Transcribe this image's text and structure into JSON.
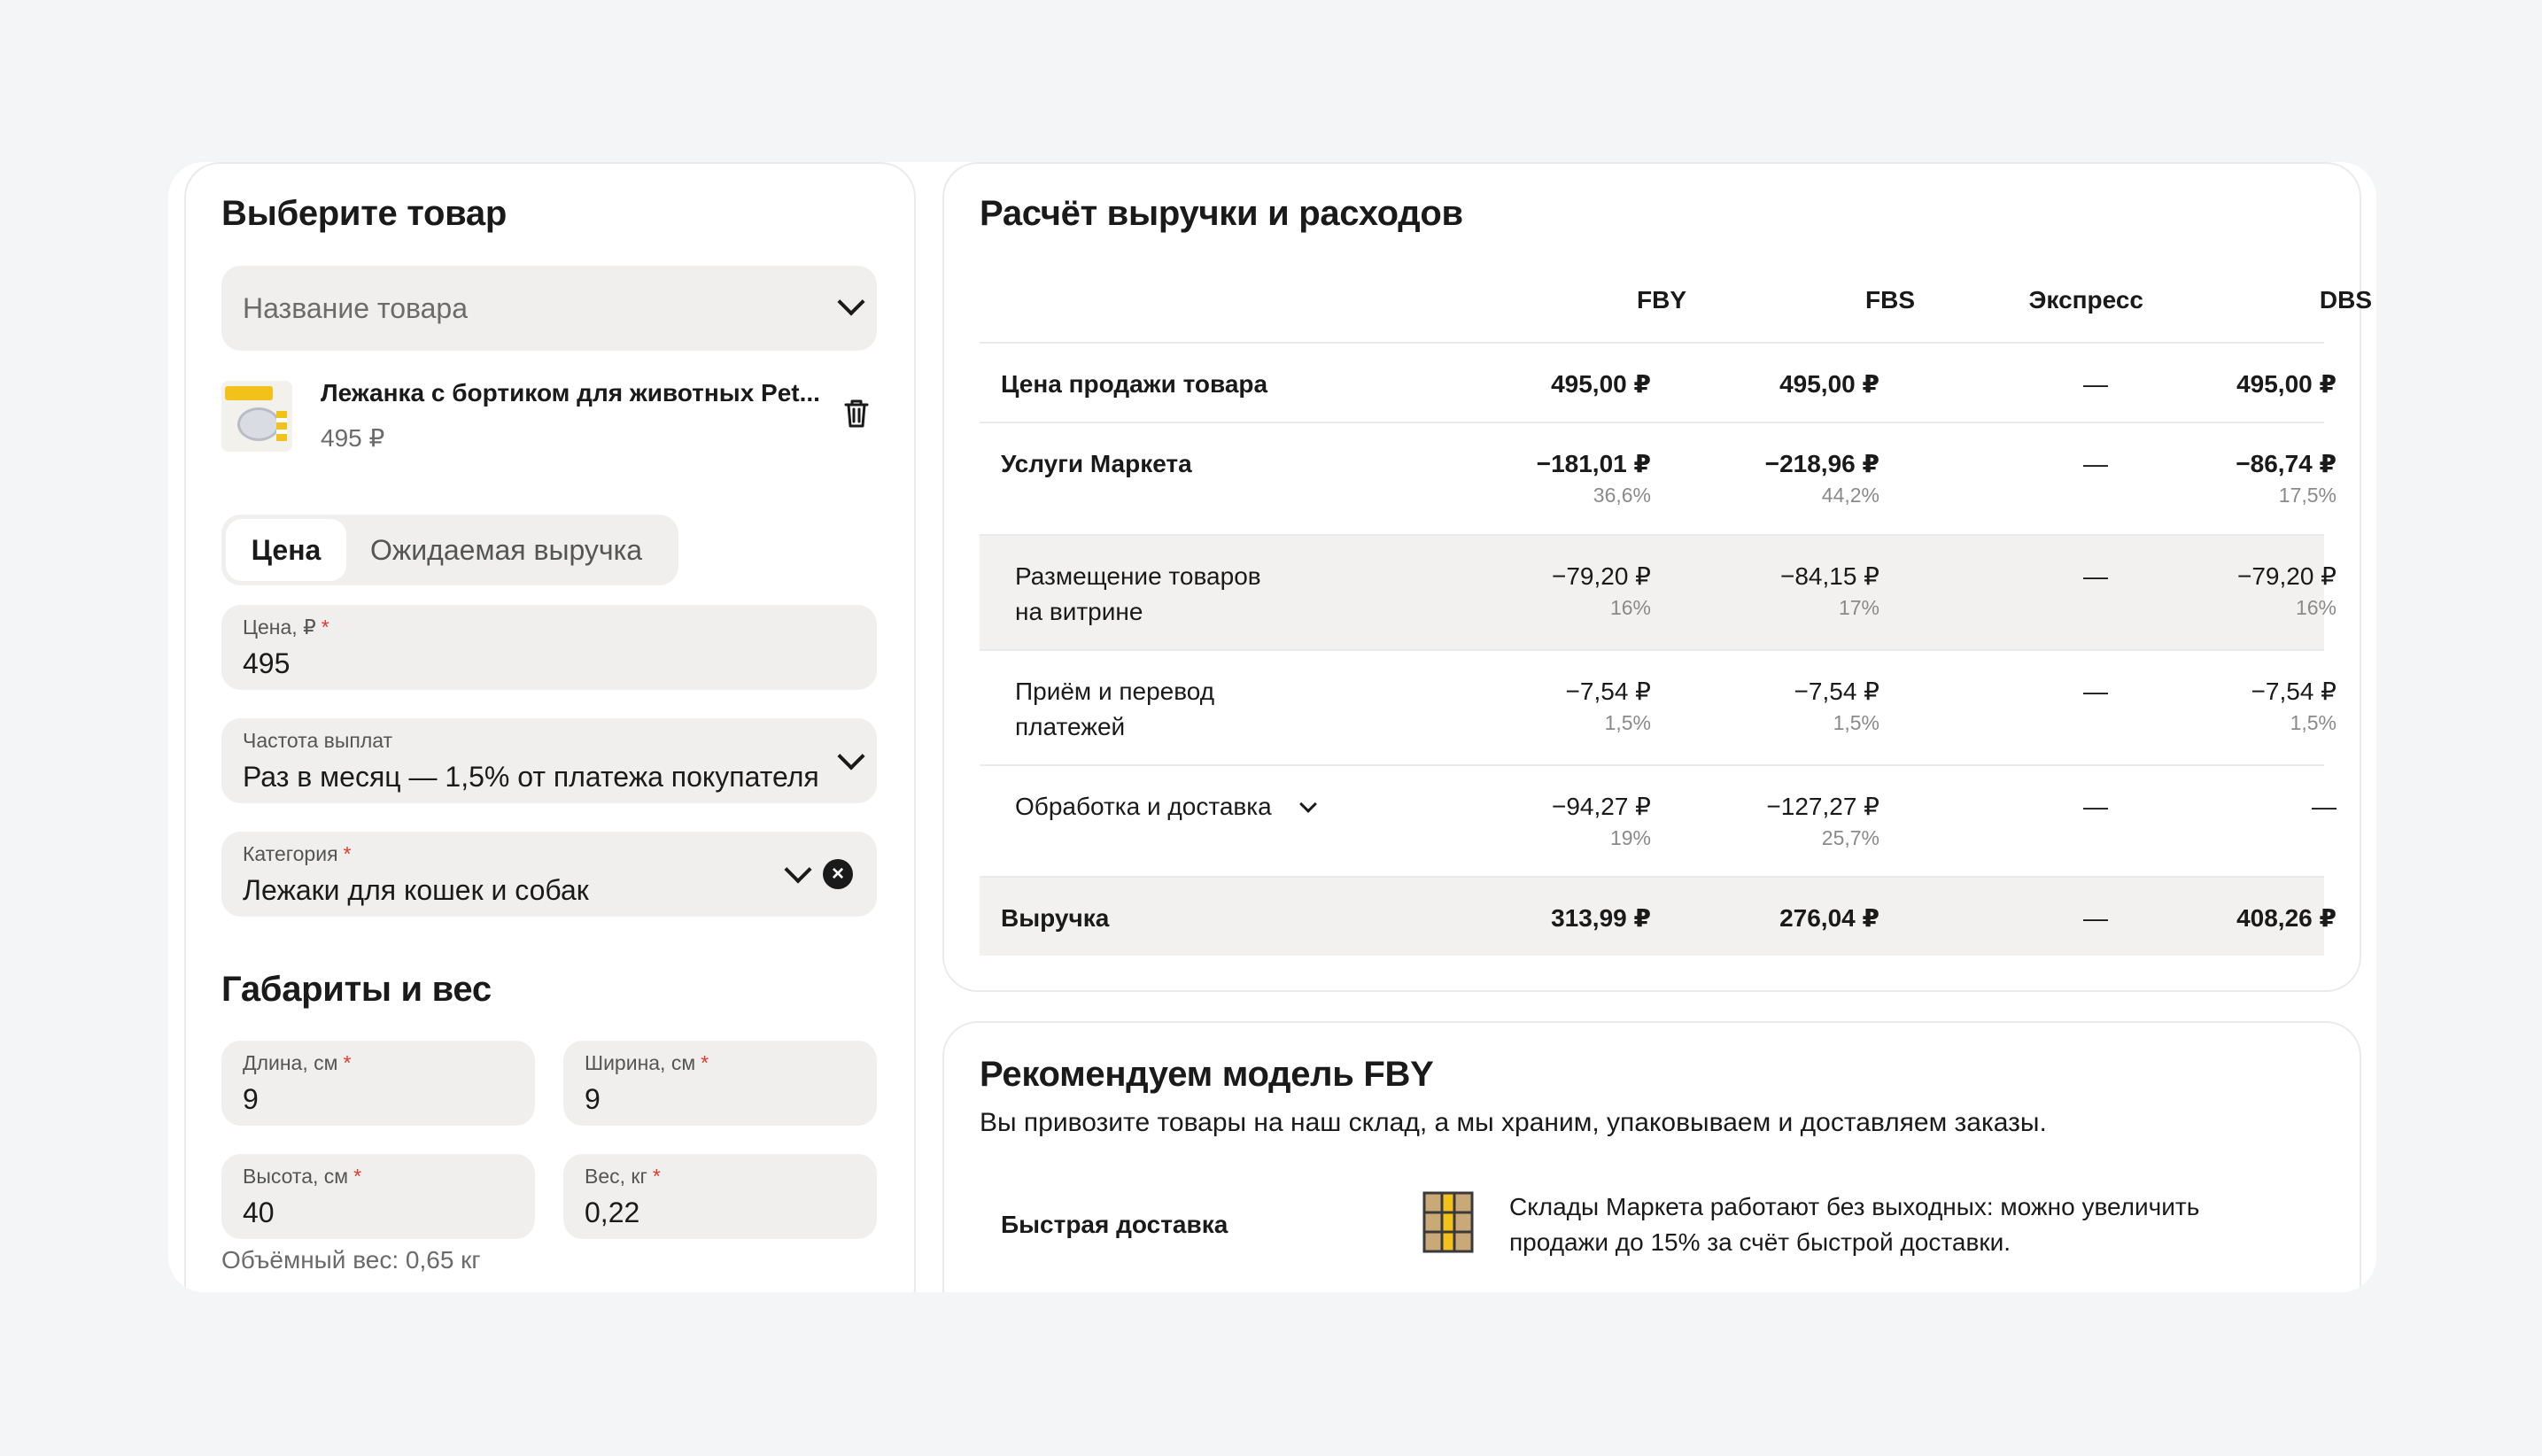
{
  "product": {
    "title": "Выберите товар",
    "select_placeholder": "Название товара",
    "item_name": "Лежанка с бортиком для животных Pet...",
    "item_price": "495 ₽"
  },
  "pricing_mode": {
    "tabs": [
      "Цена",
      "Ожидаемая выручка"
    ]
  },
  "fields": {
    "price": {
      "label": "Цена, ₽",
      "value": "495"
    },
    "payout": {
      "label": "Частота выплат",
      "value": "Раз в месяц — 1,5% от платежа покупателя"
    },
    "category": {
      "label": "Категория",
      "value": "Лежаки для кошек и собак"
    }
  },
  "dimensions": {
    "title": "Габариты и вес",
    "length": {
      "label": "Длина, см",
      "value": "9"
    },
    "width": {
      "label": "Ширина, см",
      "value": "9"
    },
    "height": {
      "label": "Высота, см",
      "value": "40"
    },
    "weight": {
      "label": "Вес, кг",
      "value": "0,22"
    },
    "volume_note": "Объёмный вес: 0,65 кг"
  },
  "calc": {
    "title": "Расчёт выручки и расходов",
    "columns": [
      "FBY",
      "FBS",
      "Экспресс",
      "DBS"
    ],
    "rows": [
      {
        "name": "Цена продажи товара",
        "cells": [
          {
            "v": "495,00 ₽"
          },
          {
            "v": "495,00 ₽"
          },
          {
            "v": "—"
          },
          {
            "v": "495,00 ₽"
          }
        ]
      },
      {
        "name": "Услуги Маркета",
        "cells": [
          {
            "v": "−181,01 ₽",
            "p": "36,6%"
          },
          {
            "v": "−218,96 ₽",
            "p": "44,2%"
          },
          {
            "v": "—"
          },
          {
            "v": "−86,74 ₽",
            "p": "17,5%"
          }
        ]
      },
      {
        "name1": "Размещение товаров",
        "name2": "на витрине",
        "cells": [
          {
            "v": "−79,20 ₽",
            "p": "16%"
          },
          {
            "v": "−84,15 ₽",
            "p": "17%"
          },
          {
            "v": "—"
          },
          {
            "v": "−79,20 ₽",
            "p": "16%"
          }
        ]
      },
      {
        "name1": "Приём и перевод",
        "name2": "платежей",
        "cells": [
          {
            "v": "−7,54 ₽",
            "p": "1,5%"
          },
          {
            "v": "−7,54 ₽",
            "p": "1,5%"
          },
          {
            "v": "—"
          },
          {
            "v": "−7,54 ₽",
            "p": "1,5%"
          }
        ]
      },
      {
        "name": "Обработка и доставка",
        "cells": [
          {
            "v": "−94,27 ₽",
            "p": "19%"
          },
          {
            "v": "−127,27 ₽",
            "p": "25,7%"
          },
          {
            "v": "—"
          },
          {
            "v": "—"
          }
        ]
      },
      {
        "name": "Выручка",
        "cells": [
          {
            "v": "313,99 ₽"
          },
          {
            "v": "276,04 ₽"
          },
          {
            "v": "—"
          },
          {
            "v": "408,26 ₽"
          }
        ]
      }
    ]
  },
  "recommend": {
    "title": "Рекомендуем модель FBY",
    "subtitle": "Вы привозите товары на наш склад, а мы храним, упаковываем и доставляем заказы.",
    "feature_name": "Быстрая доставка",
    "feature_text": "Склады Маркета работают без выходных: можно увеличить продажи до 15% за счёт быстрой доставки."
  },
  "icons": {
    "product_select": "chevron-down-icon",
    "delete_product": "trash-icon",
    "clear_category": "close-circle-icon",
    "feature": "warehouse-icon"
  },
  "colors": {
    "required": "#e23b2e",
    "field_bg": "#f0efed",
    "accent_yellow": "#f2c21a"
  }
}
